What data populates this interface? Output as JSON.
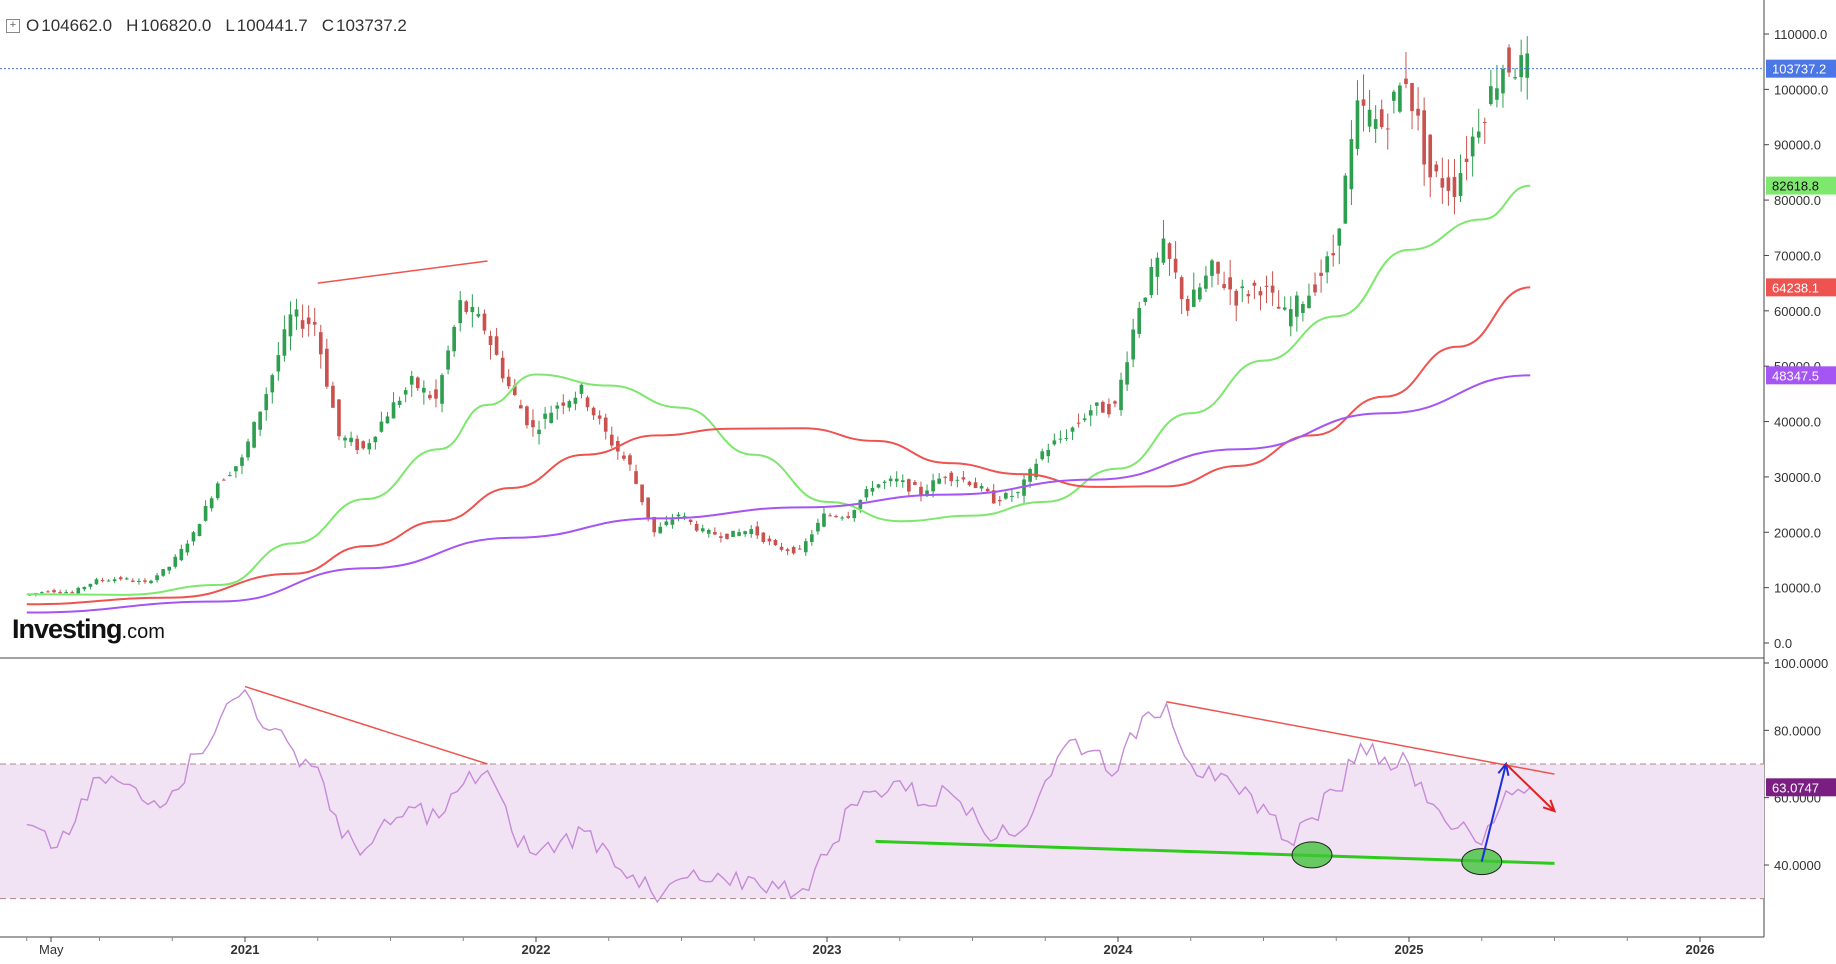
{
  "header": {
    "expand_icon": "plus-square-icon",
    "open_label": "O",
    "open": "104662.0",
    "high_label": "H",
    "high": "106820.0",
    "low_label": "L",
    "low": "100441.7",
    "close_label": "C",
    "close": "103737.2"
  },
  "logo": {
    "name": "Investing",
    "suffix": ".com"
  },
  "colors": {
    "up": "#2e9e4f",
    "down": "#c9524e",
    "ma50": "#7ee86e",
    "ma100": "#ef5350",
    "ma200": "#a455f4",
    "rsi": "#c58bd8",
    "rsi_band": "#f1e3f3",
    "price_tag": "#4a76e6"
  },
  "chart_data": [
    {
      "type": "candlestick",
      "title": "",
      "x_unit": "month",
      "xlim": [
        "2020-04",
        "2026-06"
      ],
      "ylim": [
        0,
        120000
      ],
      "y_ticks": [
        "110000.0",
        "100000.0",
        "90000.0",
        "80000.0",
        "70000.0",
        "60000.0",
        "50000.0",
        "40000.0",
        "30000.0",
        "20000.0",
        "10000.0",
        "0.0"
      ],
      "x_tick_labels": [
        "May",
        "2021",
        "2022",
        "2023",
        "2024",
        "2025",
        "2026"
      ],
      "last_price": "103737.2",
      "grid": false,
      "closes": [
        {
          "date": "2020-04",
          "value": 8600
        },
        {
          "date": "2020-05",
          "value": 9450
        },
        {
          "date": "2020-06",
          "value": 9150
        },
        {
          "date": "2020-07",
          "value": 11300
        },
        {
          "date": "2020-08",
          "value": 11650
        },
        {
          "date": "2020-09",
          "value": 10800
        },
        {
          "date": "2020-10",
          "value": 13800
        },
        {
          "date": "2020-11",
          "value": 19700
        },
        {
          "date": "2020-12",
          "value": 29000
        },
        {
          "date": "2021-01",
          "value": 33100
        },
        {
          "date": "2021-02",
          "value": 45200
        },
        {
          "date": "2021-03",
          "value": 58800
        },
        {
          "date": "2021-04",
          "value": 57700
        },
        {
          "date": "2021-05",
          "value": 37300
        },
        {
          "date": "2021-06",
          "value": 35000
        },
        {
          "date": "2021-07",
          "value": 41500
        },
        {
          "date": "2021-08",
          "value": 47100
        },
        {
          "date": "2021-09",
          "value": 43800
        },
        {
          "date": "2021-10",
          "value": 61300
        },
        {
          "date": "2021-11",
          "value": 57000
        },
        {
          "date": "2021-12",
          "value": 46300
        },
        {
          "date": "2022-01",
          "value": 38500
        },
        {
          "date": "2022-02",
          "value": 43200
        },
        {
          "date": "2022-03",
          "value": 45500
        },
        {
          "date": "2022-04",
          "value": 37700
        },
        {
          "date": "2022-05",
          "value": 31800
        },
        {
          "date": "2022-06",
          "value": 19900
        },
        {
          "date": "2022-07",
          "value": 23300
        },
        {
          "date": "2022-08",
          "value": 20050
        },
        {
          "date": "2022-09",
          "value": 19400
        },
        {
          "date": "2022-10",
          "value": 20500
        },
        {
          "date": "2022-11",
          "value": 17200
        },
        {
          "date": "2022-12",
          "value": 16550
        },
        {
          "date": "2023-01",
          "value": 23100
        },
        {
          "date": "2023-02",
          "value": 23150
        },
        {
          "date": "2023-03",
          "value": 28500
        },
        {
          "date": "2023-04",
          "value": 29250
        },
        {
          "date": "2023-05",
          "value": 27200
        },
        {
          "date": "2023-06",
          "value": 30450
        },
        {
          "date": "2023-07",
          "value": 29200
        },
        {
          "date": "2023-08",
          "value": 25950
        },
        {
          "date": "2023-09",
          "value": 26950
        },
        {
          "date": "2023-10",
          "value": 34500
        },
        {
          "date": "2023-11",
          "value": 37700
        },
        {
          "date": "2023-12",
          "value": 42250
        },
        {
          "date": "2024-01",
          "value": 42600
        },
        {
          "date": "2024-02",
          "value": 61150
        },
        {
          "date": "2024-03",
          "value": 71300
        },
        {
          "date": "2024-04",
          "value": 60650
        },
        {
          "date": "2024-05",
          "value": 67500
        },
        {
          "date": "2024-06",
          "value": 62700
        },
        {
          "date": "2024-07",
          "value": 64600
        },
        {
          "date": "2024-08",
          "value": 58950
        },
        {
          "date": "2024-09",
          "value": 63300
        },
        {
          "date": "2024-10",
          "value": 70300
        },
        {
          "date": "2024-11",
          "value": 96400
        },
        {
          "date": "2024-12",
          "value": 93400
        },
        {
          "date": "2025-01",
          "value": 102400
        },
        {
          "date": "2025-02",
          "value": 84350
        },
        {
          "date": "2025-03",
          "value": 82550
        },
        {
          "date": "2025-04",
          "value": 94200
        },
        {
          "date": "2025-05",
          "value": 104600
        },
        {
          "date": "2025-06",
          "value": 103737.2
        }
      ],
      "series": [
        {
          "name": "",
          "color_key": "ma50",
          "label": "82618.8",
          "values": [
            {
              "date": "2020-04",
              "value": 8800
            },
            {
              "date": "2020-08",
              "value": 8700
            },
            {
              "date": "2020-12",
              "value": 10500
            },
            {
              "date": "2021-03",
              "value": 18000
            },
            {
              "date": "2021-06",
              "value": 26000
            },
            {
              "date": "2021-09",
              "value": 35000
            },
            {
              "date": "2021-11",
              "value": 43000
            },
            {
              "date": "2022-01",
              "value": 48500
            },
            {
              "date": "2022-04",
              "value": 46500
            },
            {
              "date": "2022-07",
              "value": 42500
            },
            {
              "date": "2022-10",
              "value": 34000
            },
            {
              "date": "2023-01",
              "value": 25500
            },
            {
              "date": "2023-04",
              "value": 22000
            },
            {
              "date": "2023-07",
              "value": 23000
            },
            {
              "date": "2023-10",
              "value": 25500
            },
            {
              "date": "2024-01",
              "value": 31500
            },
            {
              "date": "2024-04",
              "value": 41500
            },
            {
              "date": "2024-07",
              "value": 51000
            },
            {
              "date": "2024-10",
              "value": 59000
            },
            {
              "date": "2025-01",
              "value": 71000
            },
            {
              "date": "2025-04",
              "value": 76500
            },
            {
              "date": "2025-06",
              "value": 82618.8
            }
          ]
        },
        {
          "name": "",
          "color_key": "ma100",
          "label": "64238.1",
          "values": [
            {
              "date": "2020-04",
              "value": 7000
            },
            {
              "date": "2020-10",
              "value": 8200
            },
            {
              "date": "2021-03",
              "value": 12500
            },
            {
              "date": "2021-06",
              "value": 17500
            },
            {
              "date": "2021-09",
              "value": 22000
            },
            {
              "date": "2021-12",
              "value": 28000
            },
            {
              "date": "2022-03",
              "value": 34000
            },
            {
              "date": "2022-06",
              "value": 37500
            },
            {
              "date": "2022-09",
              "value": 38700
            },
            {
              "date": "2022-12",
              "value": 38800
            },
            {
              "date": "2023-03",
              "value": 36500
            },
            {
              "date": "2023-06",
              "value": 32500
            },
            {
              "date": "2023-09",
              "value": 30500
            },
            {
              "date": "2023-12",
              "value": 28200
            },
            {
              "date": "2024-03",
              "value": 28300
            },
            {
              "date": "2024-06",
              "value": 32000
            },
            {
              "date": "2024-09",
              "value": 37500
            },
            {
              "date": "2024-12",
              "value": 44500
            },
            {
              "date": "2025-03",
              "value": 53500
            },
            {
              "date": "2025-06",
              "value": 64238.1
            }
          ]
        },
        {
          "name": "",
          "color_key": "ma200",
          "label": "48347.5",
          "values": [
            {
              "date": "2020-04",
              "value": 5500
            },
            {
              "date": "2020-12",
              "value": 7500
            },
            {
              "date": "2021-06",
              "value": 13500
            },
            {
              "date": "2021-12",
              "value": 19000
            },
            {
              "date": "2022-06",
              "value": 22500
            },
            {
              "date": "2022-12",
              "value": 24500
            },
            {
              "date": "2023-06",
              "value": 26800
            },
            {
              "date": "2023-12",
              "value": 29500
            },
            {
              "date": "2024-06",
              "value": 35000
            },
            {
              "date": "2024-12",
              "value": 41500
            },
            {
              "date": "2025-06",
              "value": 48347.5
            }
          ]
        }
      ],
      "annotations": [
        {
          "type": "line",
          "color": "#ef5350",
          "from": {
            "date": "2021-04",
            "value": 65000
          },
          "to": {
            "date": "2021-11",
            "value": 69000
          }
        }
      ]
    },
    {
      "type": "line",
      "title": "",
      "xlim": [
        "2020-04",
        "2026-06"
      ],
      "ylim": [
        20,
        100
      ],
      "y_ticks": [
        "100.0000",
        "80.0000",
        "60.0000",
        "40.0000"
      ],
      "band": [
        30,
        70
      ],
      "last_value": "63.0747",
      "series": [
        {
          "name": "",
          "color_key": "rsi",
          "values": [
            {
              "date": "2020-04",
              "value": 52
            },
            {
              "date": "2020-05",
              "value": 45
            },
            {
              "date": "2020-06",
              "value": 53
            },
            {
              "date": "2020-07",
              "value": 66
            },
            {
              "date": "2020-08",
              "value": 64
            },
            {
              "date": "2020-09",
              "value": 58
            },
            {
              "date": "2020-10",
              "value": 62
            },
            {
              "date": "2020-11",
              "value": 73
            },
            {
              "date": "2020-12",
              "value": 84
            },
            {
              "date": "2021-01",
              "value": 92
            },
            {
              "date": "2021-02",
              "value": 80
            },
            {
              "date": "2021-03",
              "value": 74
            },
            {
              "date": "2021-04",
              "value": 69
            },
            {
              "date": "2021-05",
              "value": 48
            },
            {
              "date": "2021-06",
              "value": 45
            },
            {
              "date": "2021-07",
              "value": 52
            },
            {
              "date": "2021-08",
              "value": 57
            },
            {
              "date": "2021-09",
              "value": 54
            },
            {
              "date": "2021-10",
              "value": 64
            },
            {
              "date": "2021-11",
              "value": 68
            },
            {
              "date": "2021-12",
              "value": 50
            },
            {
              "date": "2022-01",
              "value": 43
            },
            {
              "date": "2022-02",
              "value": 47
            },
            {
              "date": "2022-03",
              "value": 50
            },
            {
              "date": "2022-04",
              "value": 44
            },
            {
              "date": "2022-05",
              "value": 37
            },
            {
              "date": "2022-06",
              "value": 29
            },
            {
              "date": "2022-07",
              "value": 36
            },
            {
              "date": "2022-08",
              "value": 35
            },
            {
              "date": "2022-09",
              "value": 34
            },
            {
              "date": "2022-10",
              "value": 36
            },
            {
              "date": "2022-11",
              "value": 33
            },
            {
              "date": "2022-12",
              "value": 33
            },
            {
              "date": "2023-01",
              "value": 43
            },
            {
              "date": "2023-02",
              "value": 58
            },
            {
              "date": "2023-03",
              "value": 62
            },
            {
              "date": "2023-04",
              "value": 65
            },
            {
              "date": "2023-05",
              "value": 58
            },
            {
              "date": "2023-06",
              "value": 62
            },
            {
              "date": "2023-07",
              "value": 57
            },
            {
              "date": "2023-08",
              "value": 48
            },
            {
              "date": "2023-09",
              "value": 50
            },
            {
              "date": "2023-10",
              "value": 65
            },
            {
              "date": "2023-11",
              "value": 77
            },
            {
              "date": "2023-12",
              "value": 74
            },
            {
              "date": "2024-01",
              "value": 68
            },
            {
              "date": "2024-02",
              "value": 84
            },
            {
              "date": "2024-03",
              "value": 88
            },
            {
              "date": "2024-04",
              "value": 70
            },
            {
              "date": "2024-05",
              "value": 65
            },
            {
              "date": "2024-06",
              "value": 61
            },
            {
              "date": "2024-07",
              "value": 58
            },
            {
              "date": "2024-08",
              "value": 47
            },
            {
              "date": "2024-09",
              "value": 54
            },
            {
              "date": "2024-10",
              "value": 62
            },
            {
              "date": "2024-11",
              "value": 76
            },
            {
              "date": "2024-12",
              "value": 72
            },
            {
              "date": "2025-01",
              "value": 70
            },
            {
              "date": "2025-02",
              "value": 58
            },
            {
              "date": "2025-03",
              "value": 51
            },
            {
              "date": "2025-04",
              "value": 46
            },
            {
              "date": "2025-05",
              "value": 62
            },
            {
              "date": "2025-06",
              "value": 63.07
            }
          ]
        }
      ],
      "annotations": [
        {
          "type": "line",
          "color": "#ef5350",
          "from": {
            "date": "2021-01",
            "value": 93
          },
          "to": {
            "date": "2021-11",
            "value": 70
          }
        },
        {
          "type": "line",
          "color": "#ef5350",
          "from": {
            "date": "2024-03",
            "value": 88.5
          },
          "to": {
            "date": "2025-07",
            "value": 67
          }
        },
        {
          "type": "line",
          "color": "#2ecc1a",
          "from": {
            "date": "2023-03",
            "value": 47
          },
          "to": {
            "date": "2025-07",
            "value": 40.5
          }
        },
        {
          "type": "ellipse",
          "color": "#44c23c",
          "at": {
            "date": "2024-09",
            "value": 43
          }
        },
        {
          "type": "ellipse",
          "color": "#44c23c",
          "at": {
            "date": "2025-04",
            "value": 41
          }
        },
        {
          "type": "arrow",
          "color": "#1f2fd8",
          "from": {
            "date": "2025-04",
            "value": 41
          },
          "to": {
            "date": "2025-05",
            "value": 70
          }
        },
        {
          "type": "arrow",
          "color": "#e02020",
          "from": {
            "date": "2025-05",
            "value": 70
          },
          "to": {
            "date": "2025-07",
            "value": 56
          }
        }
      ]
    }
  ]
}
